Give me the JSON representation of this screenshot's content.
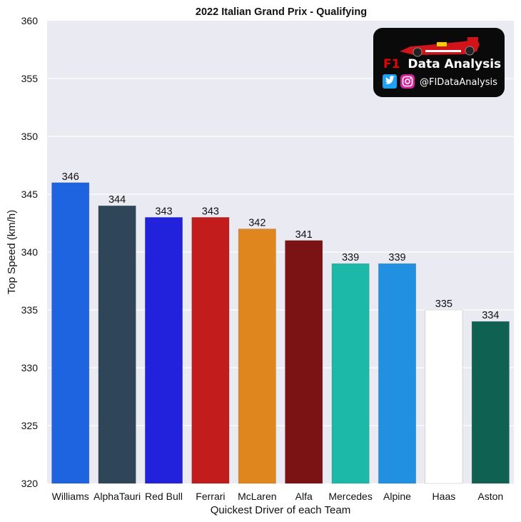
{
  "chart_data": {
    "type": "bar",
    "title": "2022 Italian Grand Prix - Qualifying",
    "xlabel": "Quickest Driver of each Team",
    "ylabel": "Top Speed (km/h)",
    "ylim": [
      320,
      360
    ],
    "yticks": [
      320,
      325,
      330,
      335,
      340,
      345,
      350,
      355,
      360
    ],
    "grid": true,
    "categories": [
      "Williams",
      "AlphaTauri",
      "Red Bull",
      "Ferrari",
      "McLaren",
      "Alfa",
      "Mercedes",
      "Alpine",
      "Haas",
      "Aston"
    ],
    "values": [
      346,
      344,
      343,
      343,
      342,
      341,
      339,
      339,
      335,
      334
    ],
    "colors": [
      "#1e64e0",
      "#2f4659",
      "#2222dd",
      "#c21c1c",
      "#e0861f",
      "#7b1214",
      "#1cb8a8",
      "#2290e0",
      "#ffffff",
      "#0f6152"
    ]
  },
  "logo": {
    "brand_prefix": "F1",
    "brand_name": "Data Analysis",
    "handle": "@FIDataAnalysis",
    "icons": [
      "twitter-icon",
      "instagram-icon",
      "f1-car-icon"
    ]
  }
}
